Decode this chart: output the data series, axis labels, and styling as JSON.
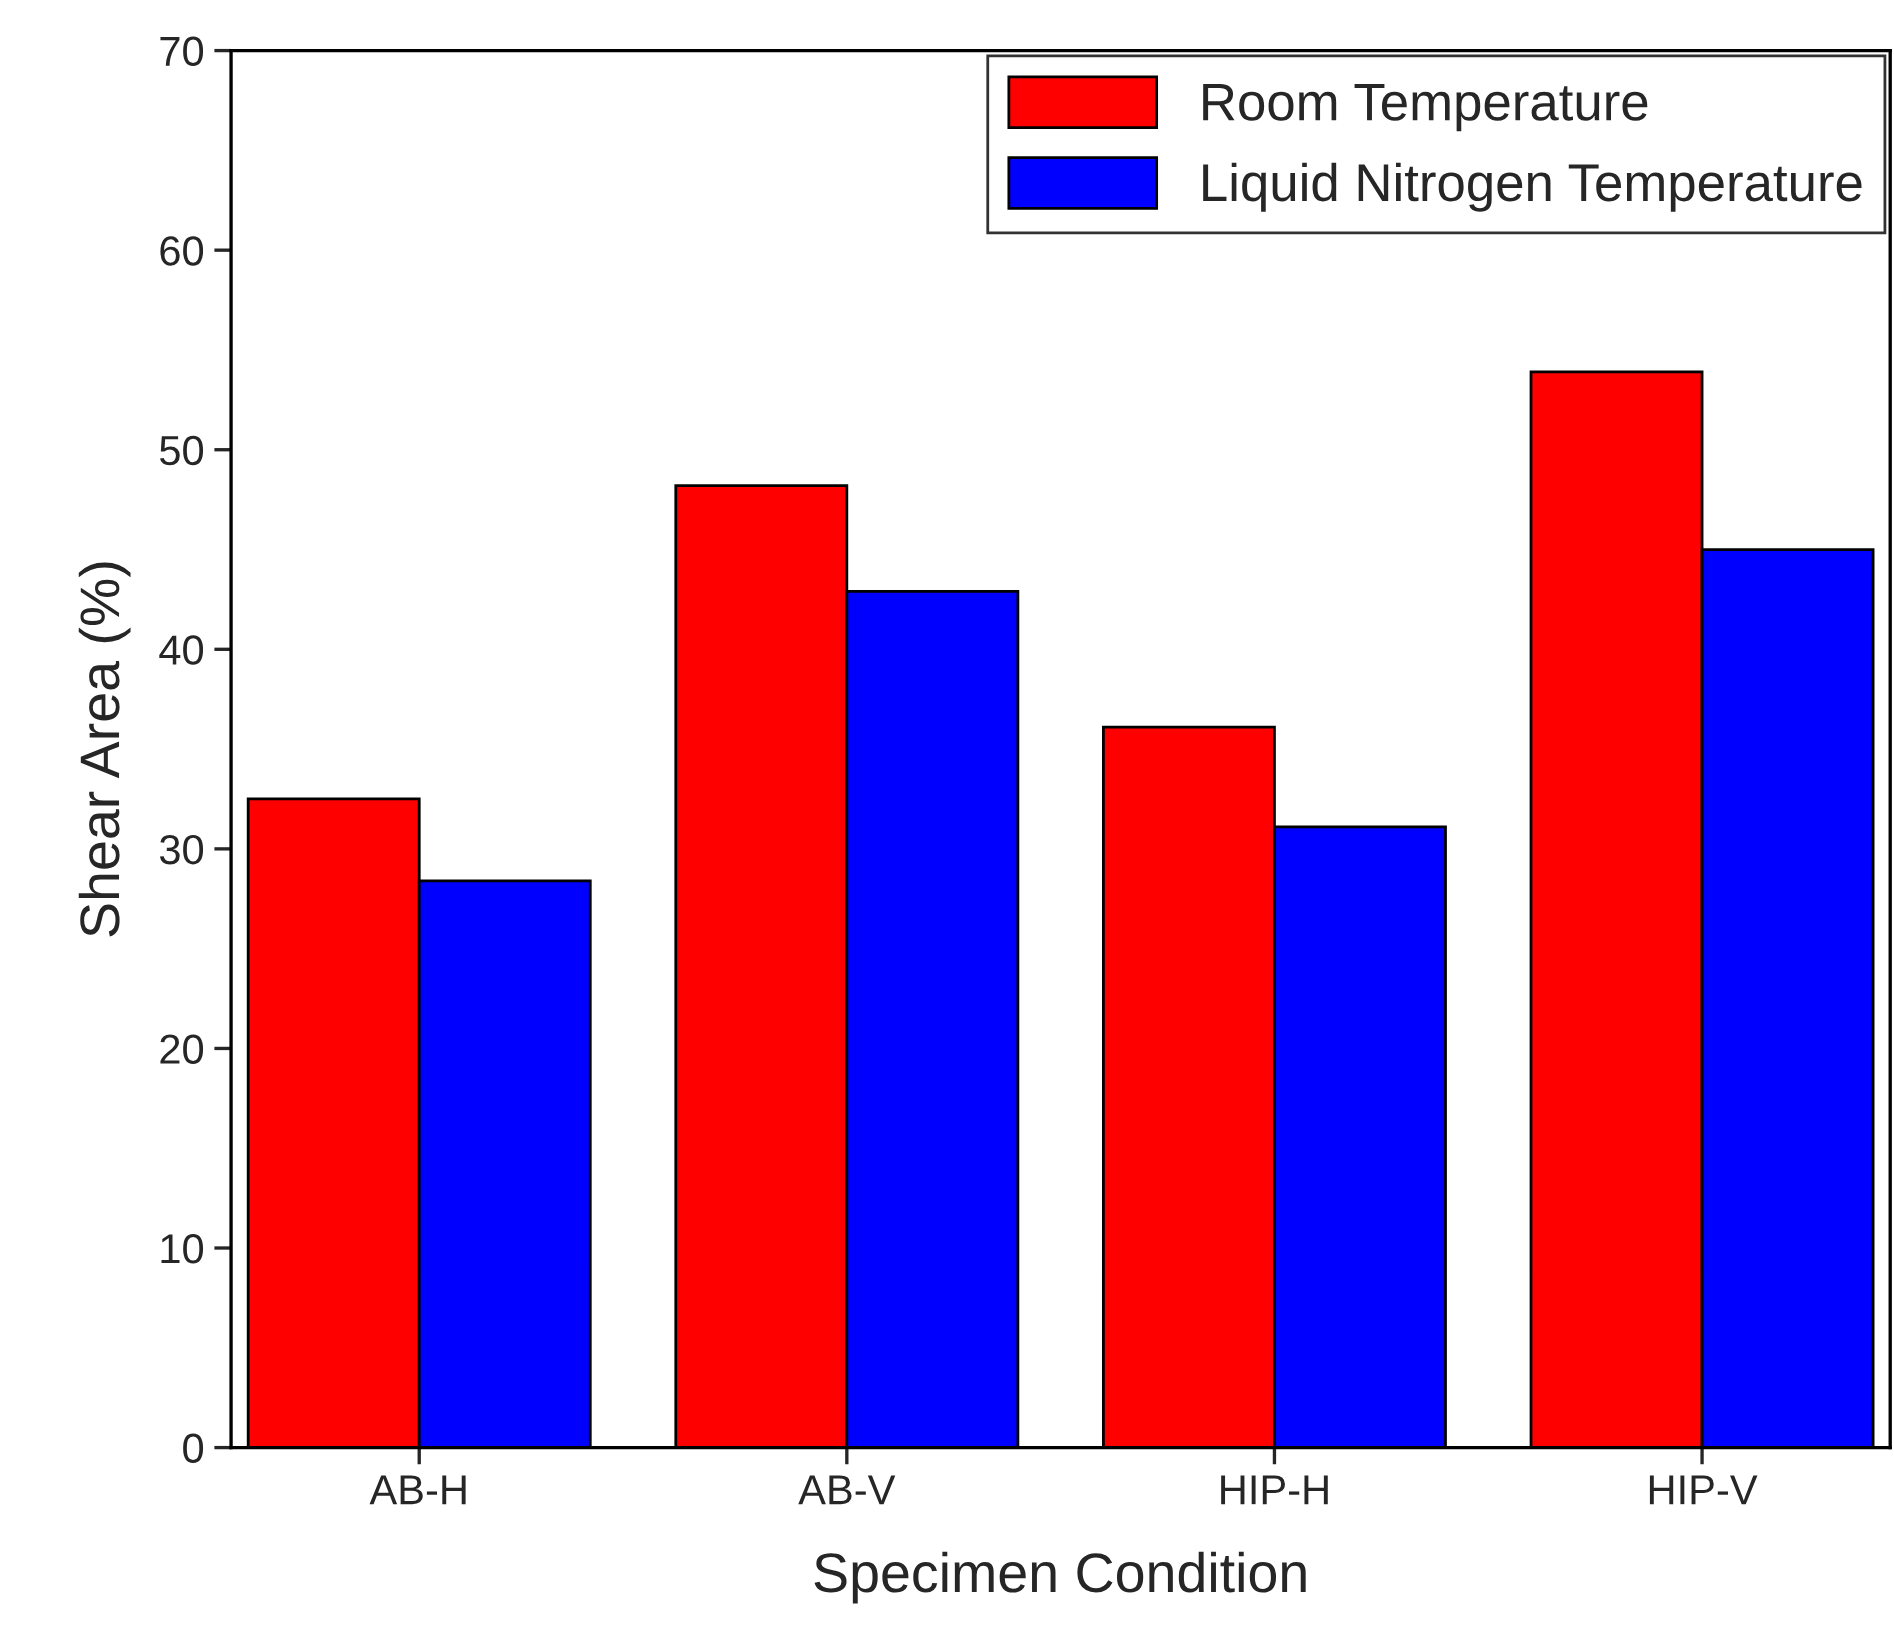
{
  "chart_data": {
    "type": "bar",
    "xlabel": "Specimen Condition",
    "ylabel": "Shear Area (%)",
    "categories": [
      "AB-H",
      "AB-V",
      "HIP-H",
      "HIP-V"
    ],
    "series": [
      {
        "name": "Room Temperature",
        "color": "#ff0000",
        "values": [
          32.5,
          48.2,
          36.1,
          53.9
        ]
      },
      {
        "name": "Liquid Nitrogen Temperature",
        "color": "#0000ff",
        "values": [
          28.4,
          42.9,
          31.1,
          45.0
        ]
      }
    ],
    "ylim": [
      0,
      70
    ],
    "yticks": [
      0,
      10,
      20,
      30,
      40,
      50,
      60,
      70
    ],
    "grid": false,
    "legend": "top right"
  }
}
